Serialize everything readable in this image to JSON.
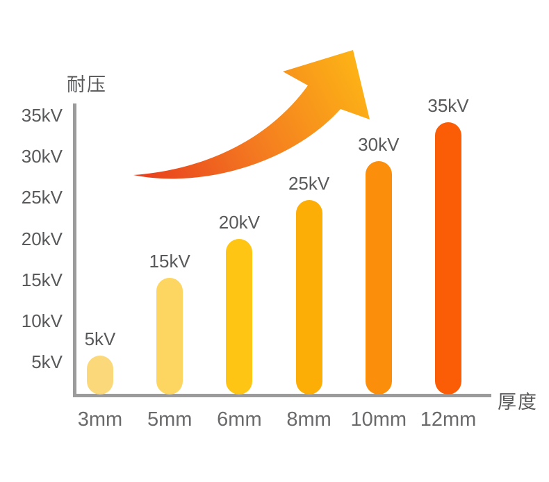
{
  "chart_data": {
    "type": "bar",
    "title": "",
    "ylabel": "耐压",
    "xlabel": "厚度",
    "categories": [
      "3mm",
      "5mm",
      "6mm",
      "8mm",
      "10mm",
      "12mm"
    ],
    "values": [
      5,
      15,
      20,
      25,
      30,
      35
    ],
    "unit": "kV",
    "bar_labels": [
      "5kV",
      "15kV",
      "20kV",
      "25kV",
      "30kV",
      "35kV"
    ],
    "bar_colors": [
      "#FBD879",
      "#FDD561",
      "#FEC514",
      "#FCAD06",
      "#FB8E0B",
      "#FA5D06"
    ],
    "y_ticks": [
      "35kV",
      "30kV",
      "25kV",
      "20kV",
      "15kV",
      "10kV",
      "5kV"
    ],
    "ylim": [
      0,
      35
    ],
    "grid": false,
    "legend": false,
    "axis_color": "#9B9B9B",
    "label_color": "#58595B",
    "arrow_gradient": [
      "#E73C1E",
      "#F47B20",
      "#FCB116"
    ]
  }
}
